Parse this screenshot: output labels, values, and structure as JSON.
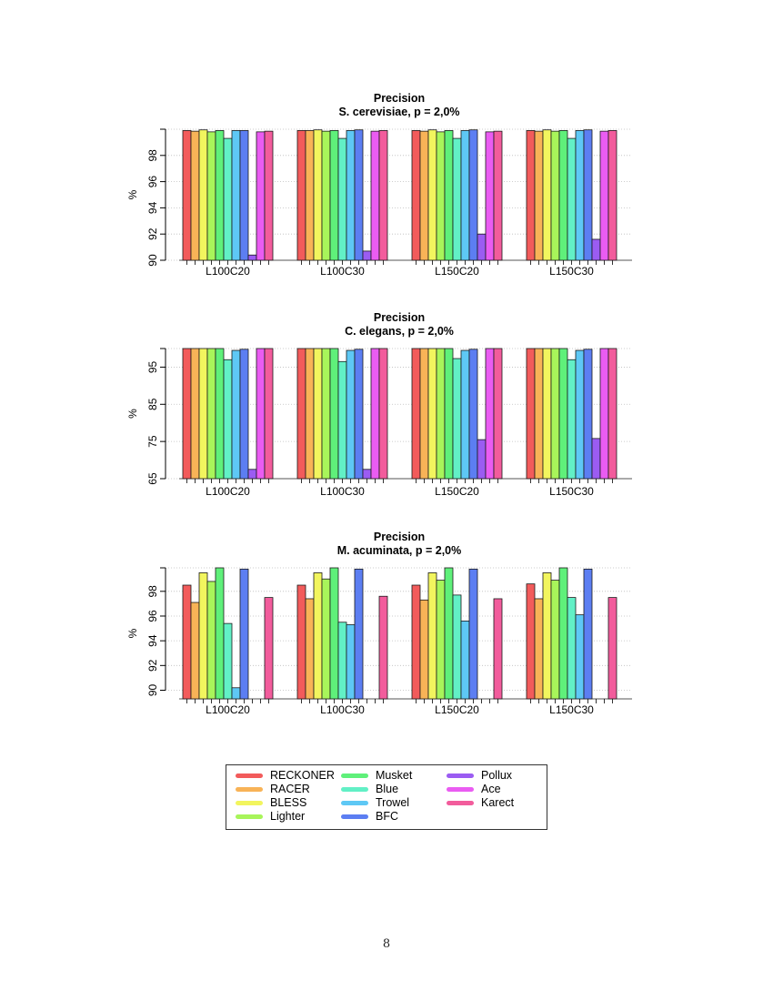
{
  "page_number": "8",
  "series": [
    {
      "name": "RECKONER",
      "color": "#f25b5b"
    },
    {
      "name": "RACER",
      "color": "#f8b357"
    },
    {
      "name": "BLESS",
      "color": "#f2f55e"
    },
    {
      "name": "Lighter",
      "color": "#a8f55a"
    },
    {
      "name": "Musket",
      "color": "#5ff07a"
    },
    {
      "name": "Blue",
      "color": "#62f0c6"
    },
    {
      "name": "Trowel",
      "color": "#5ec8f5"
    },
    {
      "name": "BFC",
      "color": "#5c7ef2"
    },
    {
      "name": "Pollux",
      "color": "#9b5cf2"
    },
    {
      "name": "Ace",
      "color": "#ea5cf2"
    },
    {
      "name": "Karect",
      "color": "#f25c9c"
    }
  ],
  "chart_data": [
    {
      "type": "bar",
      "title": "Precision",
      "subtitle": "S. cerevisiae, p = 2,0%",
      "ylabel": "%",
      "ylim": [
        90,
        100
      ],
      "yticks": [
        90,
        92,
        94,
        96,
        98
      ],
      "categories": [
        "L100C20",
        "L100C30",
        "L150C20",
        "L150C30"
      ],
      "values": [
        [
          99.9,
          99.85,
          99.95,
          99.8,
          99.9,
          99.3,
          99.9,
          99.9,
          90.4,
          99.8,
          99.85
        ],
        [
          99.9,
          99.9,
          99.95,
          99.85,
          99.9,
          99.3,
          99.9,
          99.95,
          90.7,
          99.85,
          99.9
        ],
        [
          99.9,
          99.85,
          99.95,
          99.8,
          99.9,
          99.3,
          99.9,
          99.95,
          92.0,
          99.8,
          99.85
        ],
        [
          99.9,
          99.85,
          99.95,
          99.85,
          99.9,
          99.3,
          99.9,
          99.95,
          91.6,
          99.85,
          99.9
        ]
      ]
    },
    {
      "type": "bar",
      "title": "Precision",
      "subtitle": "C. elegans, p = 2,0%",
      "ylabel": "%",
      "ylim": [
        65,
        100
      ],
      "yticks": [
        65,
        75,
        85,
        95
      ],
      "categories": [
        "L100C20",
        "L100C30",
        "L150C20",
        "L150C30"
      ],
      "values": [
        [
          100,
          100,
          100,
          100,
          100,
          97,
          99.5,
          99.8,
          67.5,
          100,
          100
        ],
        [
          100,
          100,
          100,
          100,
          100,
          96.5,
          99.5,
          99.8,
          67.5,
          100,
          100
        ],
        [
          100,
          100,
          100,
          100,
          100,
          97.3,
          99.5,
          99.8,
          75.5,
          100,
          100
        ],
        [
          100,
          100,
          100,
          100,
          100,
          97,
          99.5,
          99.8,
          75.8,
          100,
          100
        ]
      ]
    },
    {
      "type": "bar",
      "title": "Precision",
      "subtitle": "M. acuminata, p = 2,0%",
      "ylabel": "%",
      "ylim": [
        89.3,
        99.9
      ],
      "yticks": [
        90,
        92,
        94,
        96,
        98
      ],
      "categories": [
        "L100C20",
        "L100C30",
        "L150C20",
        "L150C30"
      ],
      "values": [
        [
          98.5,
          97.1,
          99.5,
          98.8,
          99.9,
          95.4,
          90.2,
          99.8,
          null,
          null,
          97.5
        ],
        [
          98.5,
          97.4,
          99.5,
          99.0,
          99.9,
          95.5,
          95.3,
          99.8,
          null,
          null,
          97.6
        ],
        [
          98.5,
          97.3,
          99.5,
          98.9,
          99.9,
          97.7,
          95.6,
          99.8,
          null,
          null,
          97.4
        ],
        [
          98.6,
          97.4,
          99.5,
          98.9,
          99.9,
          97.5,
          96.1,
          99.8,
          null,
          null,
          97.5
        ]
      ]
    }
  ]
}
